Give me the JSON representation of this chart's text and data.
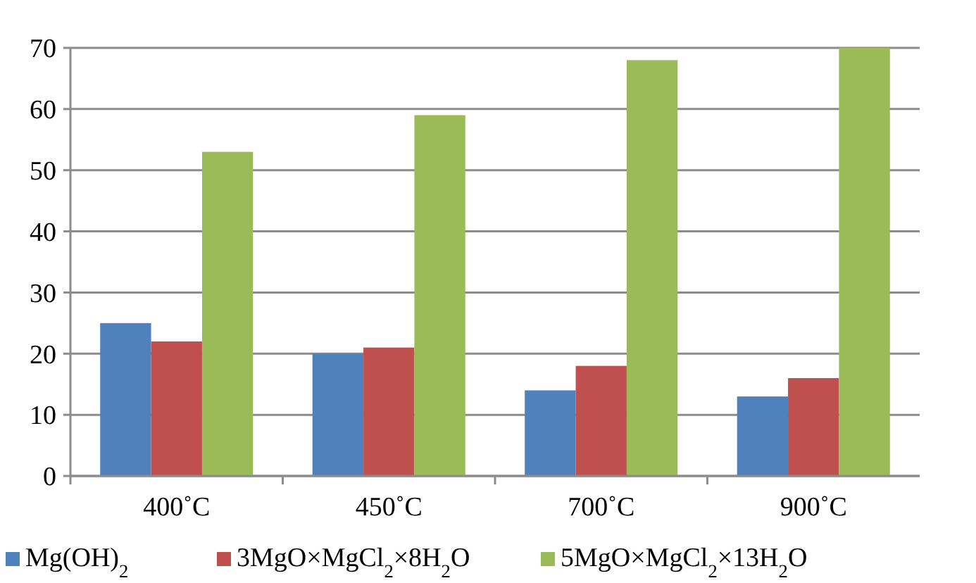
{
  "chart_data": {
    "type": "bar",
    "categories": [
      "400˚C",
      "450˚C",
      "700˚C",
      "900˚C"
    ],
    "series": [
      {
        "name": "Mg(OH)$_{2}$",
        "color": "#4f81bd",
        "values": [
          25,
          20,
          14,
          13
        ]
      },
      {
        "name": "3MgO×MgCl$_{2}$×8H$_{2}$O",
        "color": "#c0504d",
        "values": [
          22,
          21,
          18,
          16
        ]
      },
      {
        "name": "5MgO×MgCl$_{2}$×13H$_{2}$O",
        "color": "#9bbb59",
        "values": [
          53,
          59,
          68,
          70
        ]
      }
    ],
    "ylim": [
      0,
      70
    ],
    "yticks": [
      0,
      10,
      20,
      30,
      40,
      50,
      60,
      70
    ],
    "grid": "y",
    "legend": "bottom"
  }
}
